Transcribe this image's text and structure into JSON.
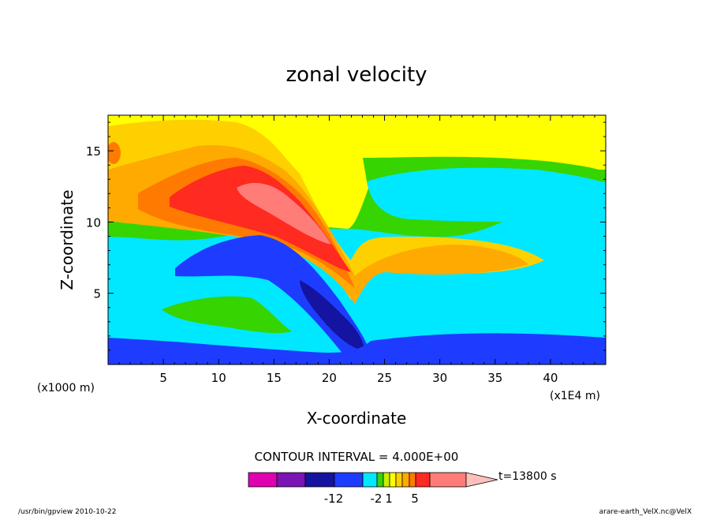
{
  "chart_data": {
    "type": "heatmap",
    "title": "zonal velocity",
    "xlabel": "X-coordinate",
    "ylabel": "Z-coordinate",
    "x_unit_label": "(x1E4 m)",
    "y_unit_label": "(x1000 m)",
    "xlim": [
      0,
      45
    ],
    "ylim": [
      0,
      17.5
    ],
    "x_ticks": [
      5,
      10,
      15,
      20,
      25,
      30,
      35,
      40
    ],
    "y_ticks": [
      5,
      10,
      15
    ],
    "contour_interval_text": "CONTOUR INTERVAL = 4.000E+00",
    "time_label": "t=13800 s",
    "colorbar": {
      "colors": [
        "#e000b0",
        "#7a14b4",
        "#1414a0",
        "#1e3cff",
        "#00e8ff",
        "#36d400",
        "#c6ee00",
        "#ffff00",
        "#ffd000",
        "#ffaa00",
        "#ff7a00",
        "#ff2a20",
        "#ff7c78",
        "#ffc0bc"
      ],
      "tick_labels": [
        {
          "value": -12,
          "label": "-12"
        },
        {
          "value": -2,
          "label": "-2"
        },
        {
          "value": 1,
          "label": "1"
        },
        {
          "value": 5,
          "label": "5"
        }
      ]
    }
  },
  "footer": {
    "left": "/usr/bin/gpview  2010-10-22",
    "right": "arare-earth_VelX.nc@VelX"
  }
}
